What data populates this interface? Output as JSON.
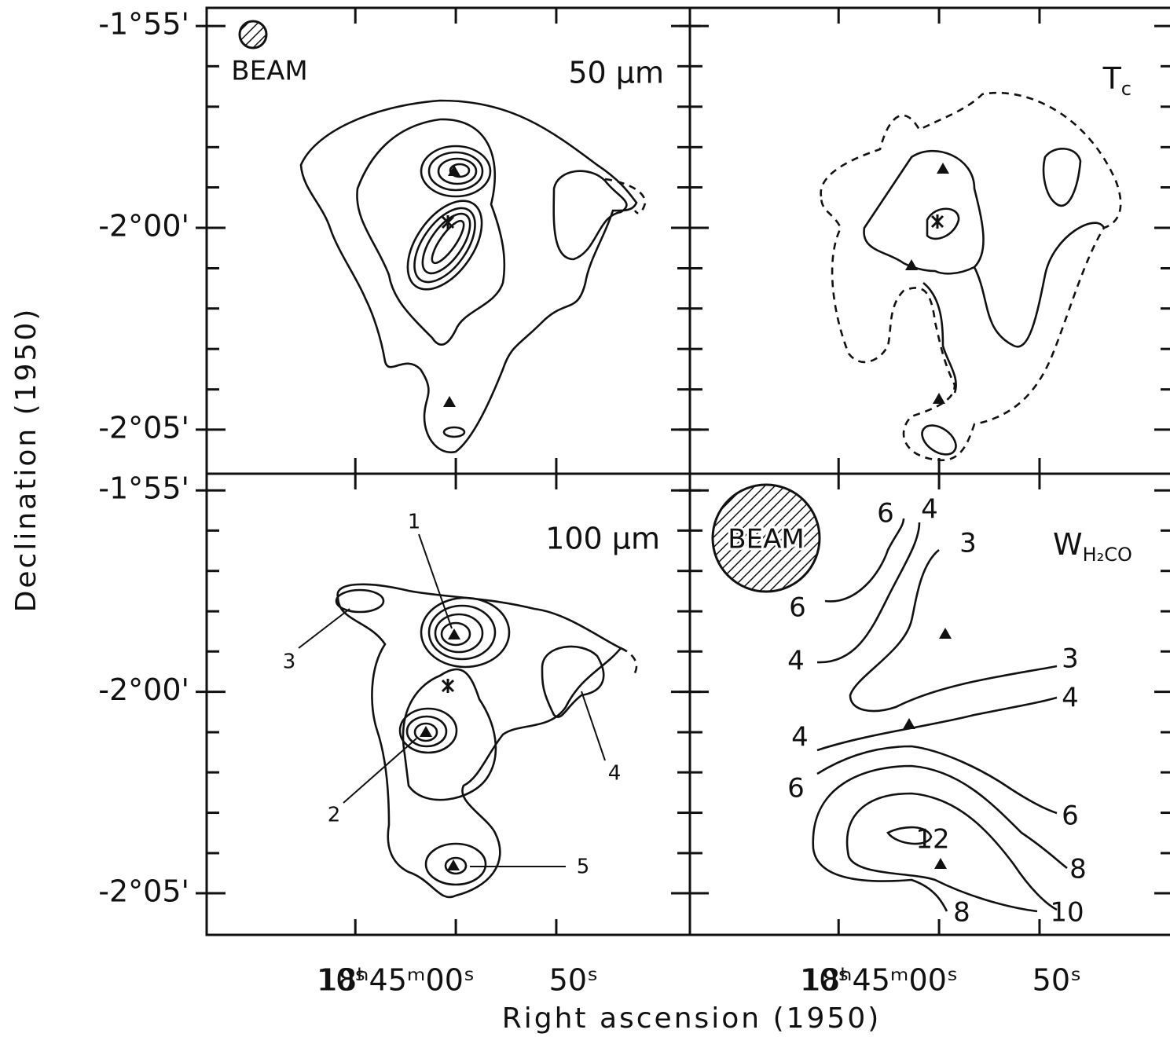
{
  "figure": {
    "ylabel": "Declination (1950)",
    "xlabel": "Right ascension (1950)"
  },
  "chart_data": [
    {
      "type": "contour",
      "title": "50 µm",
      "beam_label": "BEAM",
      "xlim": [
        24.8,
        -23.3
      ],
      "xticks": [
        10,
        0,
        -10
      ],
      "ylim": [
        -2.1015,
        -1.9092
      ],
      "yticks": [
        {
          "value": -1.9167,
          "label": "-1°55'"
        },
        {
          "value": -2.0,
          "label": "-2°00'"
        },
        {
          "value": -2.0833,
          "label": "-2°05'"
        }
      ],
      "minor_yticks": [
        -1.9333,
        -1.95,
        -1.9667,
        -1.9833,
        -2.0167,
        -2.0333,
        -2.05,
        -2.0667
      ]
    },
    {
      "type": "contour",
      "title": "T",
      "title_sub": "c",
      "xlim": [
        24.8,
        -23.3
      ],
      "xticks": [
        10,
        0,
        -10
      ],
      "ylim": [
        -2.1015,
        -1.9092
      ],
      "yticks": [
        -1.9167,
        -2.0,
        -2.0833
      ],
      "minor_yticks": [
        -1.9333,
        -1.95,
        -1.9667,
        -1.9833,
        -2.0167,
        -2.0333,
        -2.05,
        -2.0667
      ]
    },
    {
      "type": "contour",
      "title": "100 µm",
      "source_labels": [
        "1",
        "2",
        "3",
        "4",
        "5"
      ],
      "xlim": [
        24.8,
        -23.3
      ],
      "xticks": [
        {
          "value": 10,
          "label": "10ˢ"
        },
        {
          "value": 0,
          "label": "18ʰ45ᵐ00ˢ"
        },
        {
          "value": -10,
          "label": "50ˢ"
        }
      ],
      "ylim": [
        -2.1005,
        -1.9098
      ],
      "yticks": [
        {
          "value": -1.9167,
          "label": "-1°55'"
        },
        {
          "value": -2.0,
          "label": "-2°00'"
        },
        {
          "value": -2.0833,
          "label": "-2°05'"
        }
      ],
      "minor_yticks": [
        -1.9333,
        -1.95,
        -1.9667,
        -1.9833,
        -2.0167,
        -2.0333,
        -2.05,
        -2.0667
      ]
    },
    {
      "type": "contour",
      "title": "W",
      "title_sub": "H₂CO",
      "beam_label": "BEAM",
      "contour_labels": [
        6,
        4,
        3,
        6,
        4,
        3,
        4,
        4,
        6,
        6,
        8,
        12,
        8,
        10
      ],
      "xlim": [
        24.8,
        -23.3
      ],
      "xticks": [
        {
          "value": 10,
          "label": "10ˢ"
        },
        {
          "value": 0,
          "label": "18ʰ45ᵐ00ˢ"
        },
        {
          "value": -10,
          "label": "50ˢ"
        }
      ],
      "ylim": [
        -2.1005,
        -1.9098
      ],
      "yticks": [
        -1.9167,
        -2.0,
        -2.0833
      ],
      "minor_yticks": [
        -1.9333,
        -1.95,
        -1.9667,
        -1.9833,
        -2.0167,
        -2.0333,
        -2.05,
        -2.0667
      ]
    }
  ]
}
